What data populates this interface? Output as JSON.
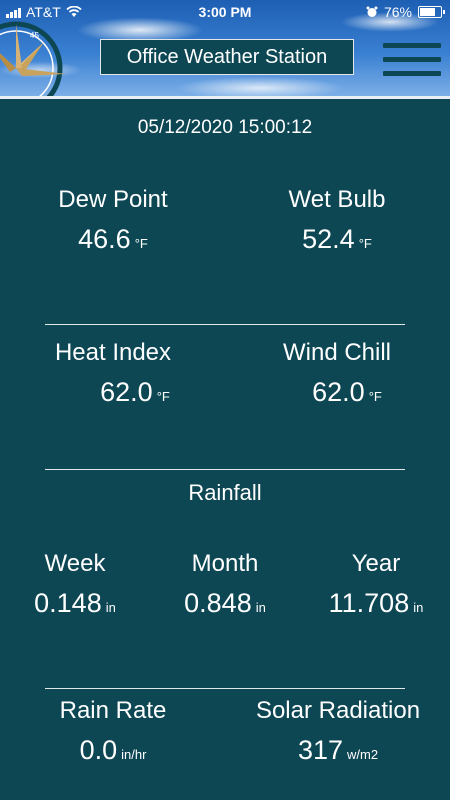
{
  "status_bar": {
    "carrier": "AT&T",
    "time": "3:00 PM",
    "battery": "76%",
    "battery_level": 0.76
  },
  "header": {
    "title": "Office Weather Station",
    "compass_mark": "45"
  },
  "timestamp": "05/12/2020 15:00:12",
  "row1": {
    "dew_point": {
      "label": "Dew Point",
      "value": "46.6",
      "unit": "°F"
    },
    "wet_bulb": {
      "label": "Wet Bulb",
      "value": "52.4",
      "unit": "°F"
    }
  },
  "row2": {
    "heat_index": {
      "label": "Heat Index",
      "value": "62.0",
      "unit": "°F"
    },
    "wind_chill": {
      "label": "Wind Chill",
      "value": "62.0",
      "unit": "°F"
    }
  },
  "rainfall": {
    "title": "Rainfall",
    "week": {
      "label": "Week",
      "value": "0.148",
      "unit": "in"
    },
    "month": {
      "label": "Month",
      "value": "0.848",
      "unit": "in"
    },
    "year": {
      "label": "Year",
      "value": "11.708",
      "unit": "in"
    }
  },
  "row4": {
    "rain_rate": {
      "label": "Rain Rate",
      "value": "0.0",
      "unit": "in/hr"
    },
    "solar_radiation": {
      "label": "Solar Radiation",
      "value": "317",
      "unit": "w/m2"
    }
  },
  "colors": {
    "background": "#0d4754",
    "text": "#ffffff",
    "divider": "#e2e8ea",
    "sky": "#2f74c8",
    "compass_gold": "#c9a25c"
  }
}
